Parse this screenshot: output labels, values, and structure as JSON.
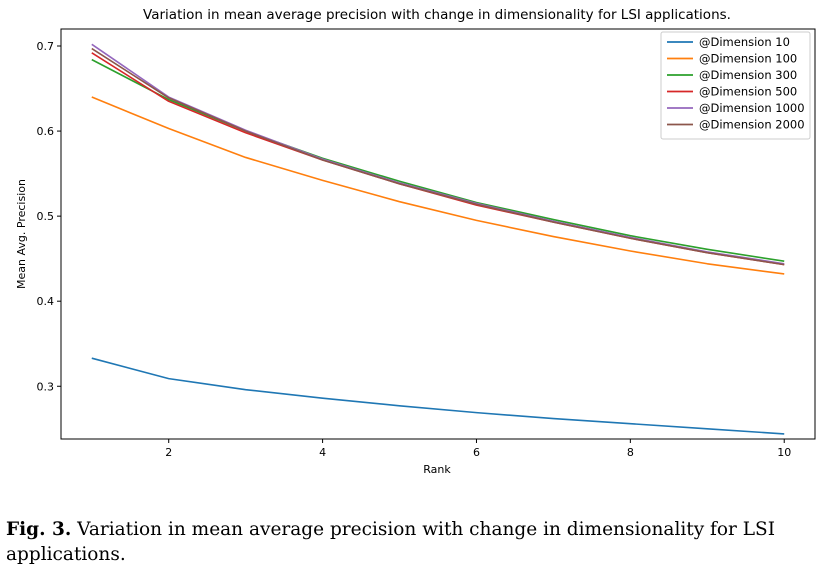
{
  "chart_data": {
    "type": "line",
    "title": "Variation in mean average precision with change in dimensionality for LSI applications.",
    "xlabel": "Rank",
    "ylabel": "Mean Avg. Precision",
    "xlim": [
      0.6,
      10.4
    ],
    "ylim": [
      0.238,
      0.72
    ],
    "xticks": [
      2,
      4,
      6,
      8,
      10
    ],
    "yticks": [
      0.3,
      0.4,
      0.5,
      0.6,
      0.7
    ],
    "legend_position": "top-right",
    "grid": false,
    "x": [
      1,
      2,
      3,
      4,
      5,
      6,
      7,
      8,
      9,
      10
    ],
    "series": [
      {
        "name": "@Dimension 10",
        "color": "#1f77b4",
        "values": [
          0.333,
          0.309,
          0.296,
          0.286,
          0.277,
          0.269,
          0.262,
          0.256,
          0.25,
          0.244
        ]
      },
      {
        "name": "@Dimension 100",
        "color": "#ff7f0e",
        "values": [
          0.64,
          0.603,
          0.569,
          0.542,
          0.517,
          0.495,
          0.476,
          0.459,
          0.444,
          0.432
        ]
      },
      {
        "name": "@Dimension 300",
        "color": "#2ca02c",
        "values": [
          0.684,
          0.637,
          0.6,
          0.568,
          0.541,
          0.516,
          0.496,
          0.477,
          0.461,
          0.447
        ]
      },
      {
        "name": "@Dimension 500",
        "color": "#d62728",
        "values": [
          0.692,
          0.635,
          0.598,
          0.566,
          0.538,
          0.513,
          0.493,
          0.474,
          0.457,
          0.443
        ]
      },
      {
        "name": "@Dimension 1000",
        "color": "#9467bd",
        "values": [
          0.702,
          0.64,
          0.601,
          0.567,
          0.539,
          0.515,
          0.494,
          0.475,
          0.458,
          0.444
        ]
      },
      {
        "name": "@Dimension 2000",
        "color": "#8c564b",
        "values": [
          0.697,
          0.639,
          0.6,
          0.566,
          0.538,
          0.514,
          0.493,
          0.474,
          0.457,
          0.443
        ]
      }
    ]
  },
  "caption": {
    "label": "Fig. 3.",
    "text": " Variation in mean average precision with change in dimensionality for LSI applications."
  }
}
